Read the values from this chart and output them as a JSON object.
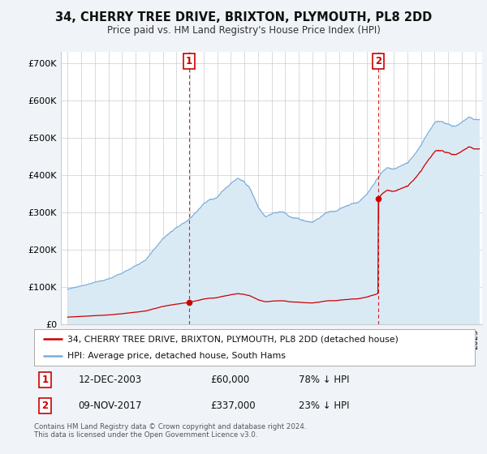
{
  "title": "34, CHERRY TREE DRIVE, BRIXTON, PLYMOUTH, PL8 2DD",
  "subtitle": "Price paid vs. HM Land Registry's House Price Index (HPI)",
  "legend_line1": "34, CHERRY TREE DRIVE, BRIXTON, PLYMOUTH, PL8 2DD (detached house)",
  "legend_line2": "HPI: Average price, detached house, South Hams",
  "sale1_x": 2003.95,
  "sale1_y": 60000,
  "sale2_x": 2017.86,
  "sale2_y": 337000,
  "sale_color": "#cc0000",
  "hpi_color": "#7aaddb",
  "hpi_fill_color": "#daeaf5",
  "background_color": "#f0f4f8",
  "plot_bg_color": "#ffffff",
  "ylim": [
    0,
    730000
  ],
  "yticks": [
    0,
    100000,
    200000,
    300000,
    400000,
    500000,
    600000,
    700000
  ],
  "ytick_labels": [
    "£0",
    "£100K",
    "£200K",
    "£300K",
    "£400K",
    "£500K",
    "£600K",
    "£700K"
  ],
  "xlim": [
    1994.5,
    2025.5
  ],
  "footer": "Contains HM Land Registry data © Crown copyright and database right 2024.\nThis data is licensed under the Open Government Licence v3.0."
}
